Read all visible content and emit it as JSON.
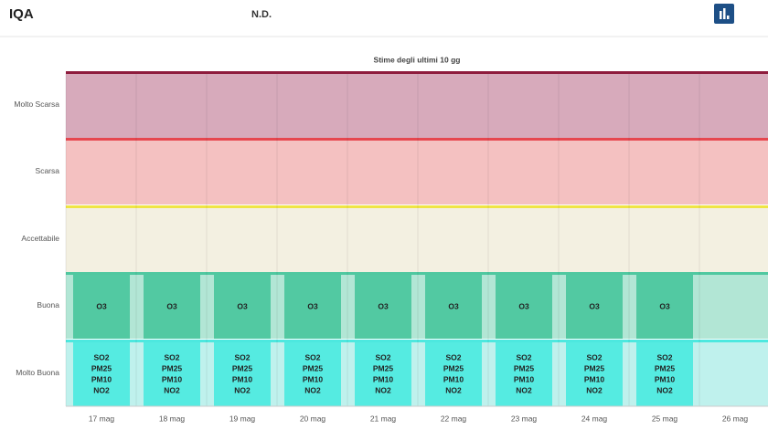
{
  "header": {
    "title": "IQA",
    "status": "N.D."
  },
  "chart": {
    "title": "Stime degli ultimi 10 gg",
    "levels": [
      {
        "name": "Molto Scarsa",
        "fill": "#d7aabb",
        "line": "#8e1c3d"
      },
      {
        "name": "Scarsa",
        "fill": "#f4c1c1",
        "line": "#e6474f"
      },
      {
        "name": "Accettabile",
        "fill": "#f3f0e1",
        "line": "#efe445"
      },
      {
        "name": "Buona",
        "fill": "#b2e6d5",
        "line": "#4fc8a0",
        "box": "#52c9a2"
      },
      {
        "name": "Molto Buona",
        "fill": "#bff1ed",
        "line": "#4de8df",
        "box": "#55ebe1"
      }
    ],
    "days": [
      {
        "date": "17 mag",
        "buona": [
          "O3"
        ],
        "molto_buona": [
          "SO2",
          "PM25",
          "PM10",
          "NO2"
        ]
      },
      {
        "date": "18 mag",
        "buona": [
          "O3"
        ],
        "molto_buona": [
          "SO2",
          "PM25",
          "PM10",
          "NO2"
        ]
      },
      {
        "date": "19 mag",
        "buona": [
          "O3"
        ],
        "molto_buona": [
          "SO2",
          "PM25",
          "PM10",
          "NO2"
        ]
      },
      {
        "date": "20 mag",
        "buona": [
          "O3"
        ],
        "molto_buona": [
          "SO2",
          "PM25",
          "PM10",
          "NO2"
        ]
      },
      {
        "date": "21 mag",
        "buona": [
          "O3"
        ],
        "molto_buona": [
          "SO2",
          "PM25",
          "PM10",
          "NO2"
        ]
      },
      {
        "date": "22 mag",
        "buona": [
          "O3"
        ],
        "molto_buona": [
          "SO2",
          "PM25",
          "PM10",
          "NO2"
        ]
      },
      {
        "date": "23 mag",
        "buona": [
          "O3"
        ],
        "molto_buona": [
          "SO2",
          "PM25",
          "PM10",
          "NO2"
        ]
      },
      {
        "date": "24 mag",
        "buona": [
          "O3"
        ],
        "molto_buona": [
          "SO2",
          "PM25",
          "PM10",
          "NO2"
        ]
      },
      {
        "date": "25 mag",
        "buona": [
          "O3"
        ],
        "molto_buona": [
          "SO2",
          "PM25",
          "PM10",
          "NO2"
        ]
      },
      {
        "date": "26 mag",
        "buona": [],
        "molto_buona": []
      }
    ]
  }
}
